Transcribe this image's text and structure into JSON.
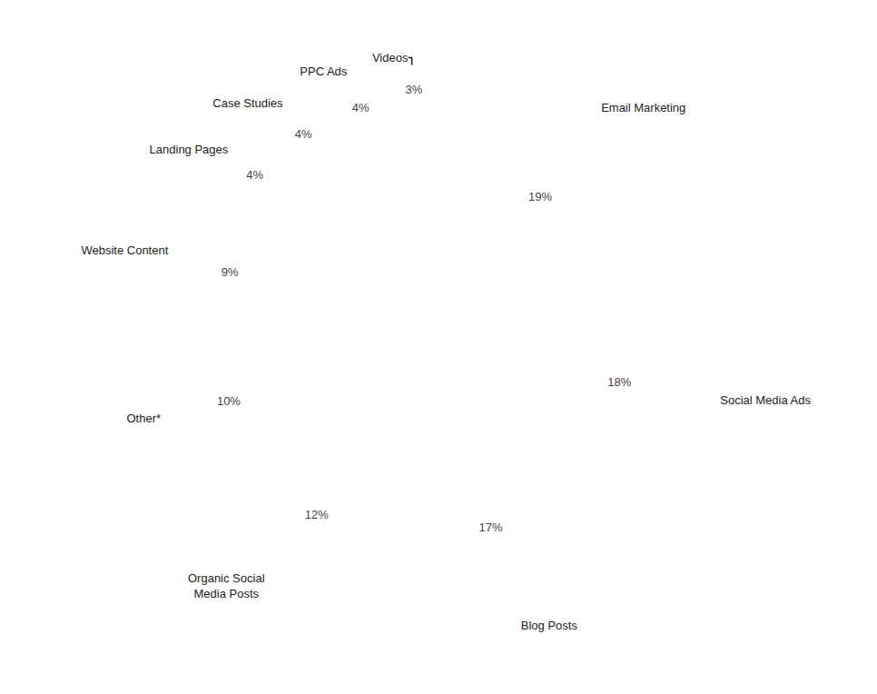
{
  "chart_data": {
    "type": "pie",
    "categories": [
      "Email Marketing",
      "Social Media Ads",
      "Blog Posts",
      "Organic Social\nMedia Posts",
      "Other*",
      "Website Content",
      "Landing Pages",
      "Case Studies",
      "PPC Ads",
      "Videos"
    ],
    "values": [
      19,
      18,
      17,
      12,
      10,
      9,
      4,
      4,
      4,
      3
    ],
    "value_labels": [
      "19%",
      "18%",
      "17%",
      "12%",
      "10%",
      "9%",
      "4%",
      "4%",
      "4%",
      "3%"
    ],
    "data_labels": true
  }
}
